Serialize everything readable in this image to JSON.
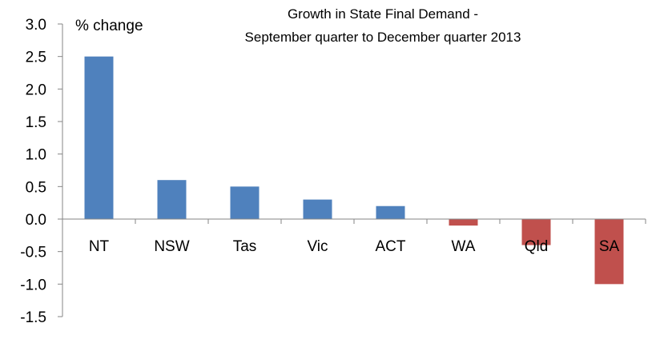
{
  "chart_data": {
    "type": "bar",
    "title": [
      "Growth in State Final Demand -",
      "September quarter to December quarter 2013"
    ],
    "ylabel": "% change",
    "xlabel": "",
    "categories": [
      "NT",
      "NSW",
      "Tas",
      "Vic",
      "ACT",
      "WA",
      "Qld",
      "SA"
    ],
    "values": [
      2.5,
      0.6,
      0.5,
      0.3,
      0.2,
      -0.1,
      -0.4,
      -1.0
    ],
    "ylim": [
      -1.5,
      3.0
    ],
    "yticks": [
      "3.0",
      "2.5",
      "2.0",
      "1.5",
      "1.0",
      "0.5",
      "0.0",
      "-0.5",
      "-1.0",
      "-1.5"
    ],
    "colors": {
      "positive": "#4f81bd",
      "negative": "#c0504d",
      "axis": "#868686"
    },
    "grid": false,
    "legend": "none"
  }
}
